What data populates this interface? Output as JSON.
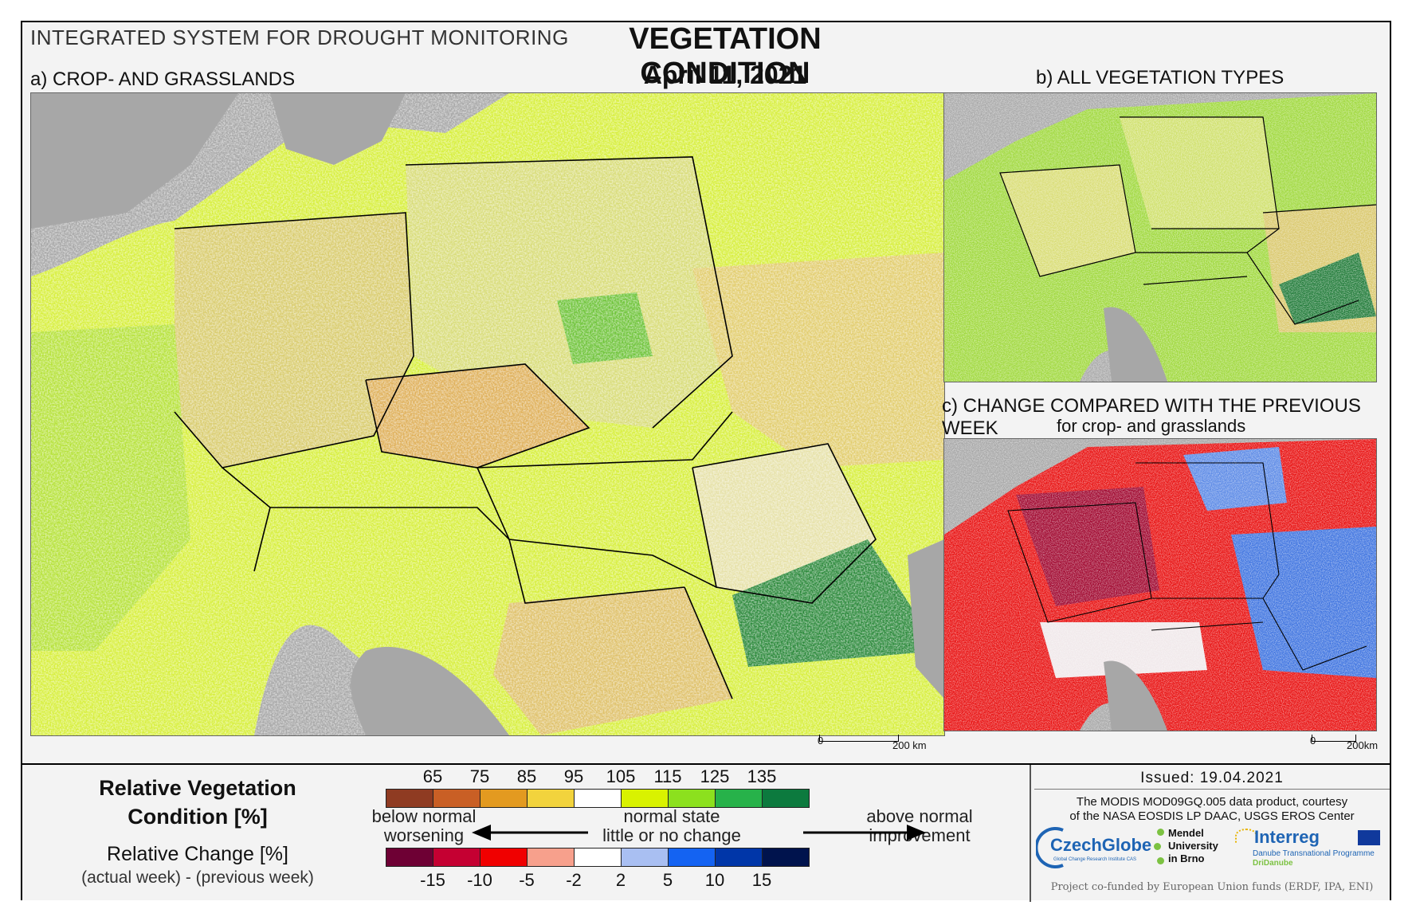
{
  "header": {
    "system": "INTEGRATED SYSTEM FOR DROUGHT MONITORING",
    "title": "VEGETATION CONDITION",
    "date": "April 11, 2021"
  },
  "panels": {
    "a": {
      "label": "a) CROP- AND GRASSLANDS",
      "scale_zero": "0",
      "scale_end": "200 km"
    },
    "b": {
      "label": "b) ALL VEGETATION TYPES"
    },
    "c": {
      "label": "c) CHANGE COMPARED WITH THE PREVIOUS WEEK",
      "sublabel": "for crop- and grasslands",
      "scale_zero": "0",
      "scale_end": "200km"
    }
  },
  "legend": {
    "rvc_title_line1": "Relative Vegetation",
    "rvc_title_line2": "Condition [%]",
    "rc_title": "Relative Change [%]",
    "rc_subtitle": "(actual week) - (previous week)",
    "rvc_ticks": [
      "65",
      "75",
      "85",
      "95",
      "105",
      "115",
      "125",
      "135"
    ],
    "rvc_colors": [
      "#8f3b22",
      "#c95f25",
      "#e39a20",
      "#f2d33d",
      "#ffffff",
      "#d9f200",
      "#8ce01e",
      "#27b24a",
      "#0c7a3e"
    ],
    "rc_ticks": [
      "-15",
      "-10",
      "-5",
      "-2",
      "2",
      "5",
      "10",
      "15"
    ],
    "rc_colors": [
      "#6e0034",
      "#c50032",
      "#f00000",
      "#f7a08c",
      "#ffffff",
      "#a9bff2",
      "#1463f2",
      "#0036a8",
      "#00134d"
    ],
    "left_line1": "below normal",
    "left_line2": "worsening",
    "center_line1": "normal state",
    "center_line2": "little or no change",
    "right_line1": "above normal",
    "right_line2": "improvement"
  },
  "credits": {
    "issued": "Issued: 19.04.2021",
    "line1": "The MODIS MOD09GQ.005 data product, courtesy",
    "line2": "of the NASA EOSDIS LP DAAC, USGS EROS Center",
    "czechglobe": "CzechGlobe",
    "czechglobe_sub": "Global Change Research Institute CAS",
    "mendel1": "Mendel",
    "mendel2": "University",
    "mendel3": "in Brno",
    "interreg": "Interreg",
    "interreg_sub": "Danube Transnational Programme",
    "dridanube": "DriDanube",
    "funding": "Project co-funded by European Union funds (ERDF, IPA, ENI)"
  }
}
